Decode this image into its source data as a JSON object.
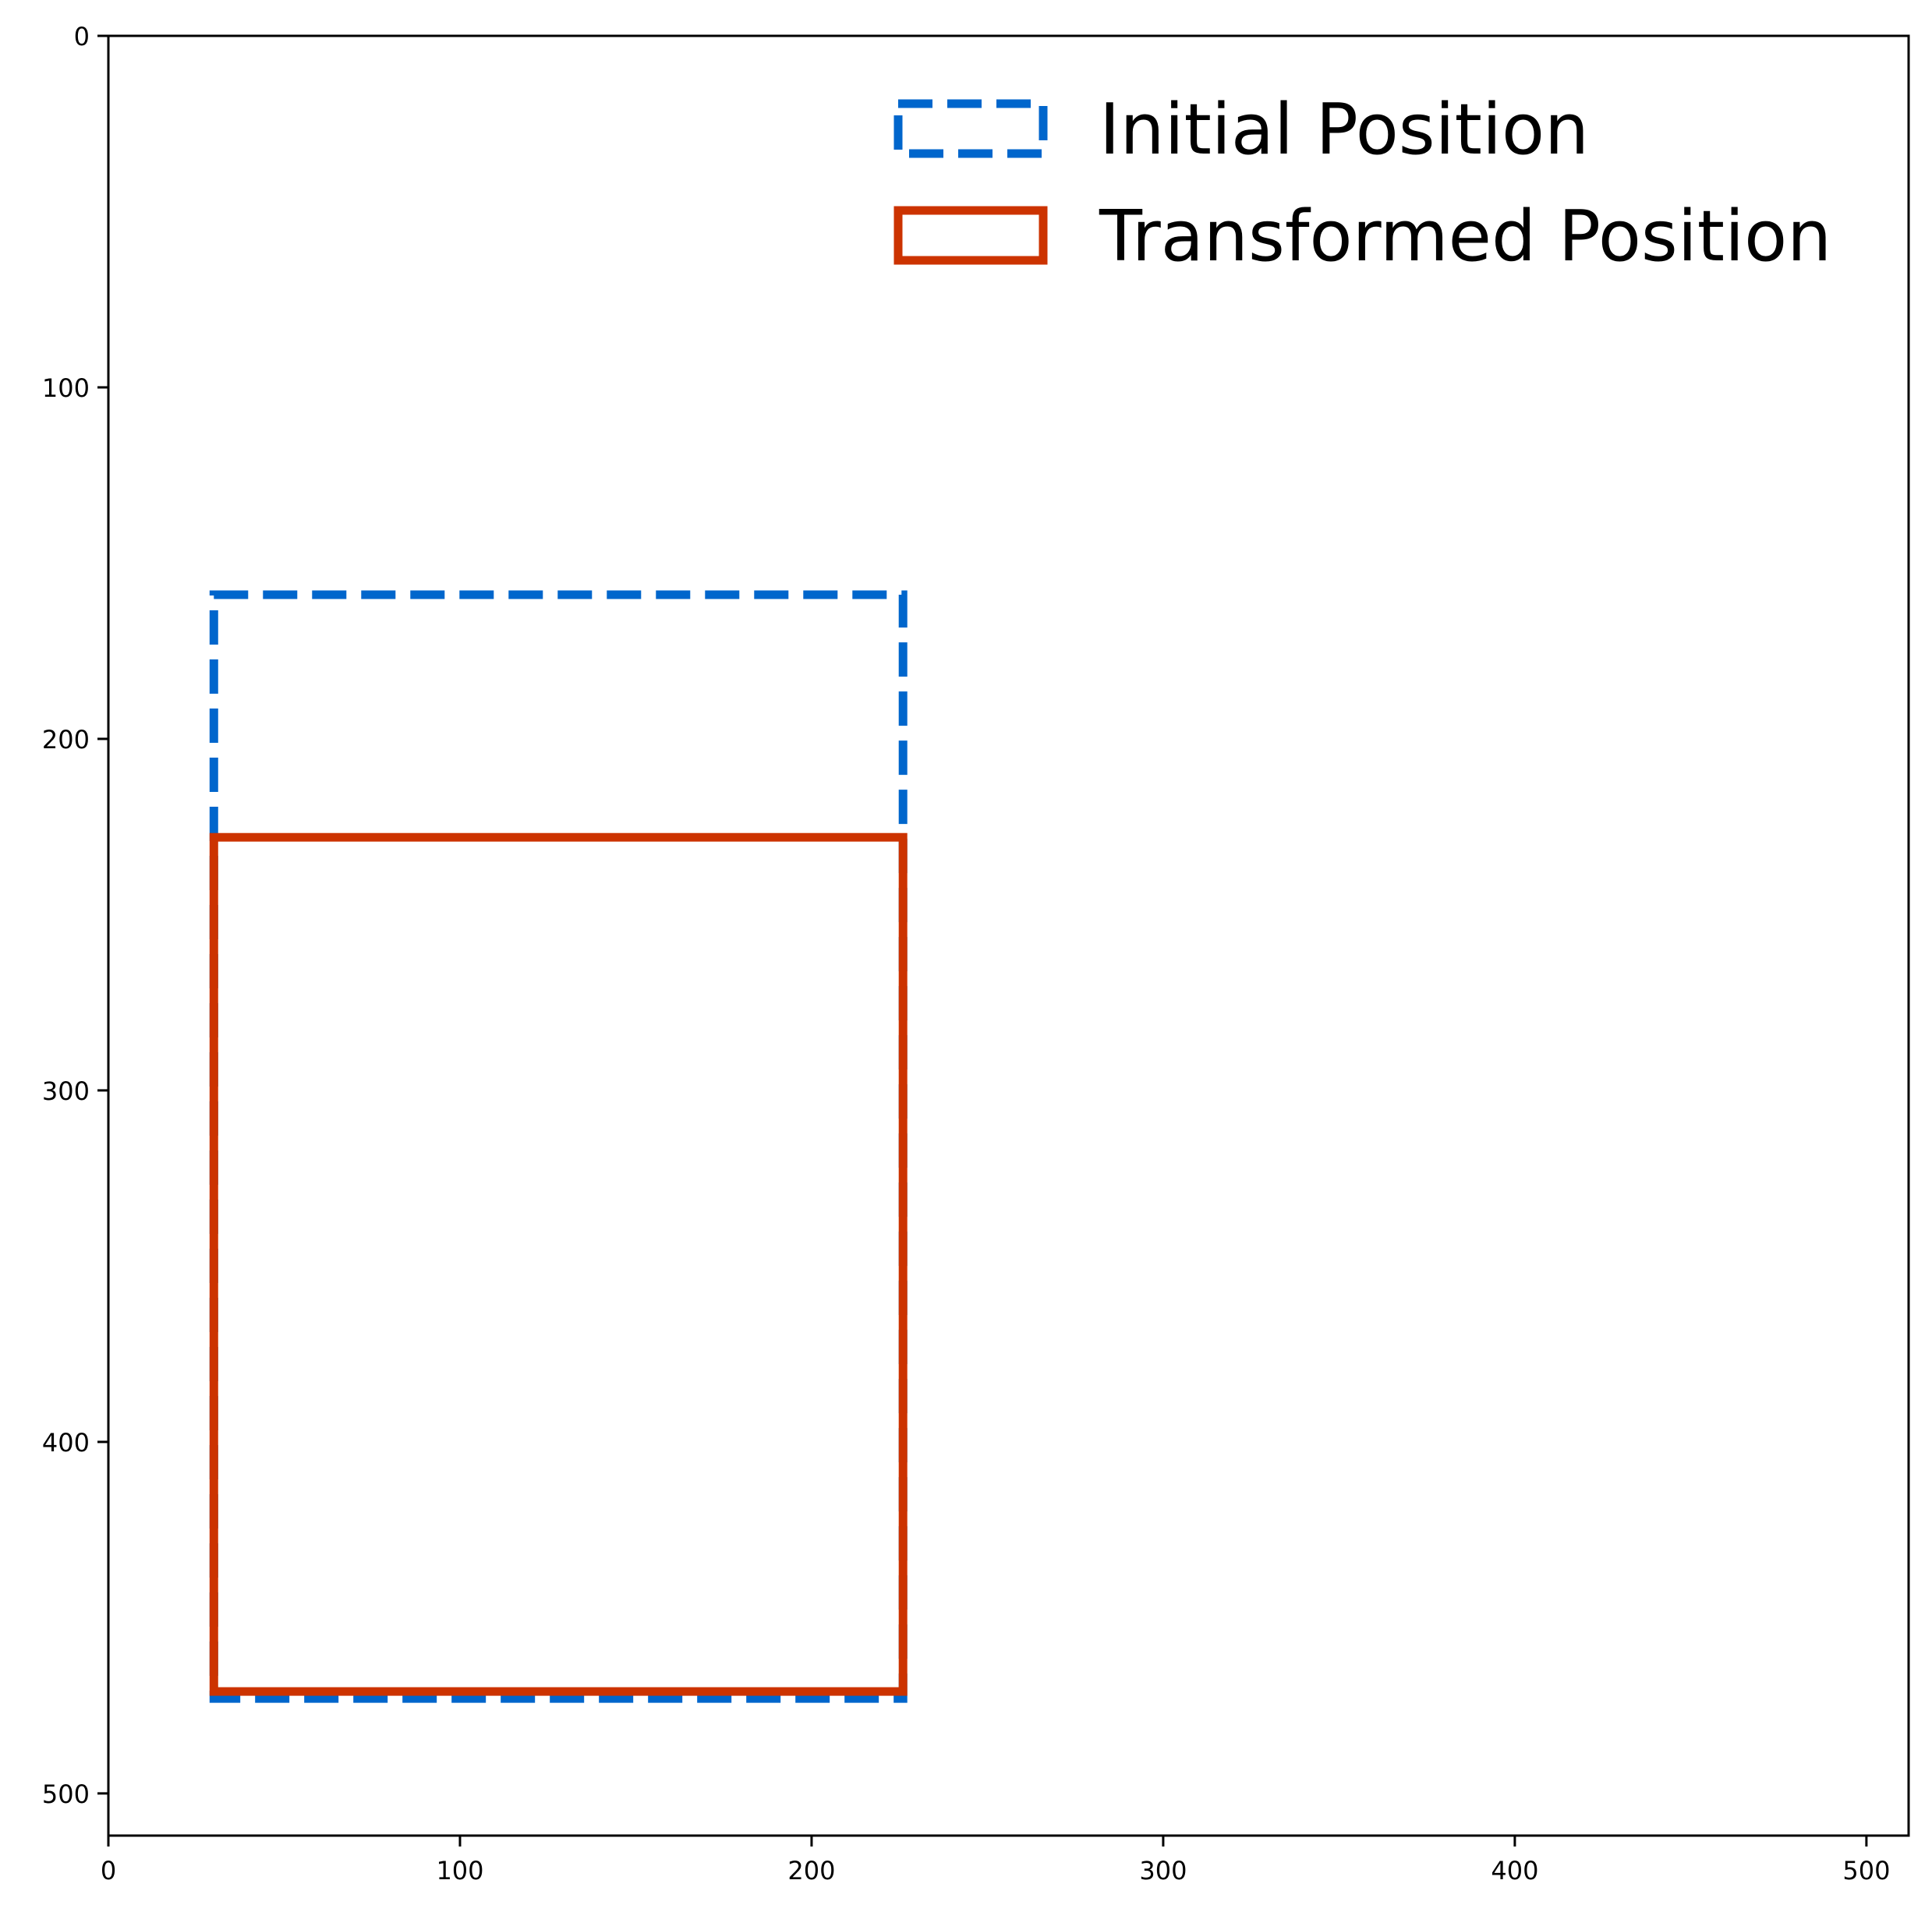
{
  "chart_data": {
    "type": "rectangles",
    "title": "",
    "xlabel": "",
    "ylabel": "",
    "xlim": [
      0,
      512
    ],
    "ylim": [
      512,
      0
    ],
    "y_axis_inverted": true,
    "x_ticks": [
      0,
      100,
      200,
      300,
      400,
      500
    ],
    "y_ticks": [
      0,
      100,
      200,
      300,
      400,
      500
    ],
    "grid": false,
    "legend_location": "upper right",
    "series": [
      {
        "name": "Initial Position",
        "color": "#0066CC",
        "line_style": "dashed",
        "rect": {
          "x0": 30,
          "y0": 159,
          "x1": 226,
          "y1": 473
        }
      },
      {
        "name": "Transformed Position",
        "color": "#CC3300",
        "line_style": "solid",
        "rect": {
          "x0": 30,
          "y0": 228,
          "x1": 226,
          "y1": 471
        }
      }
    ]
  }
}
